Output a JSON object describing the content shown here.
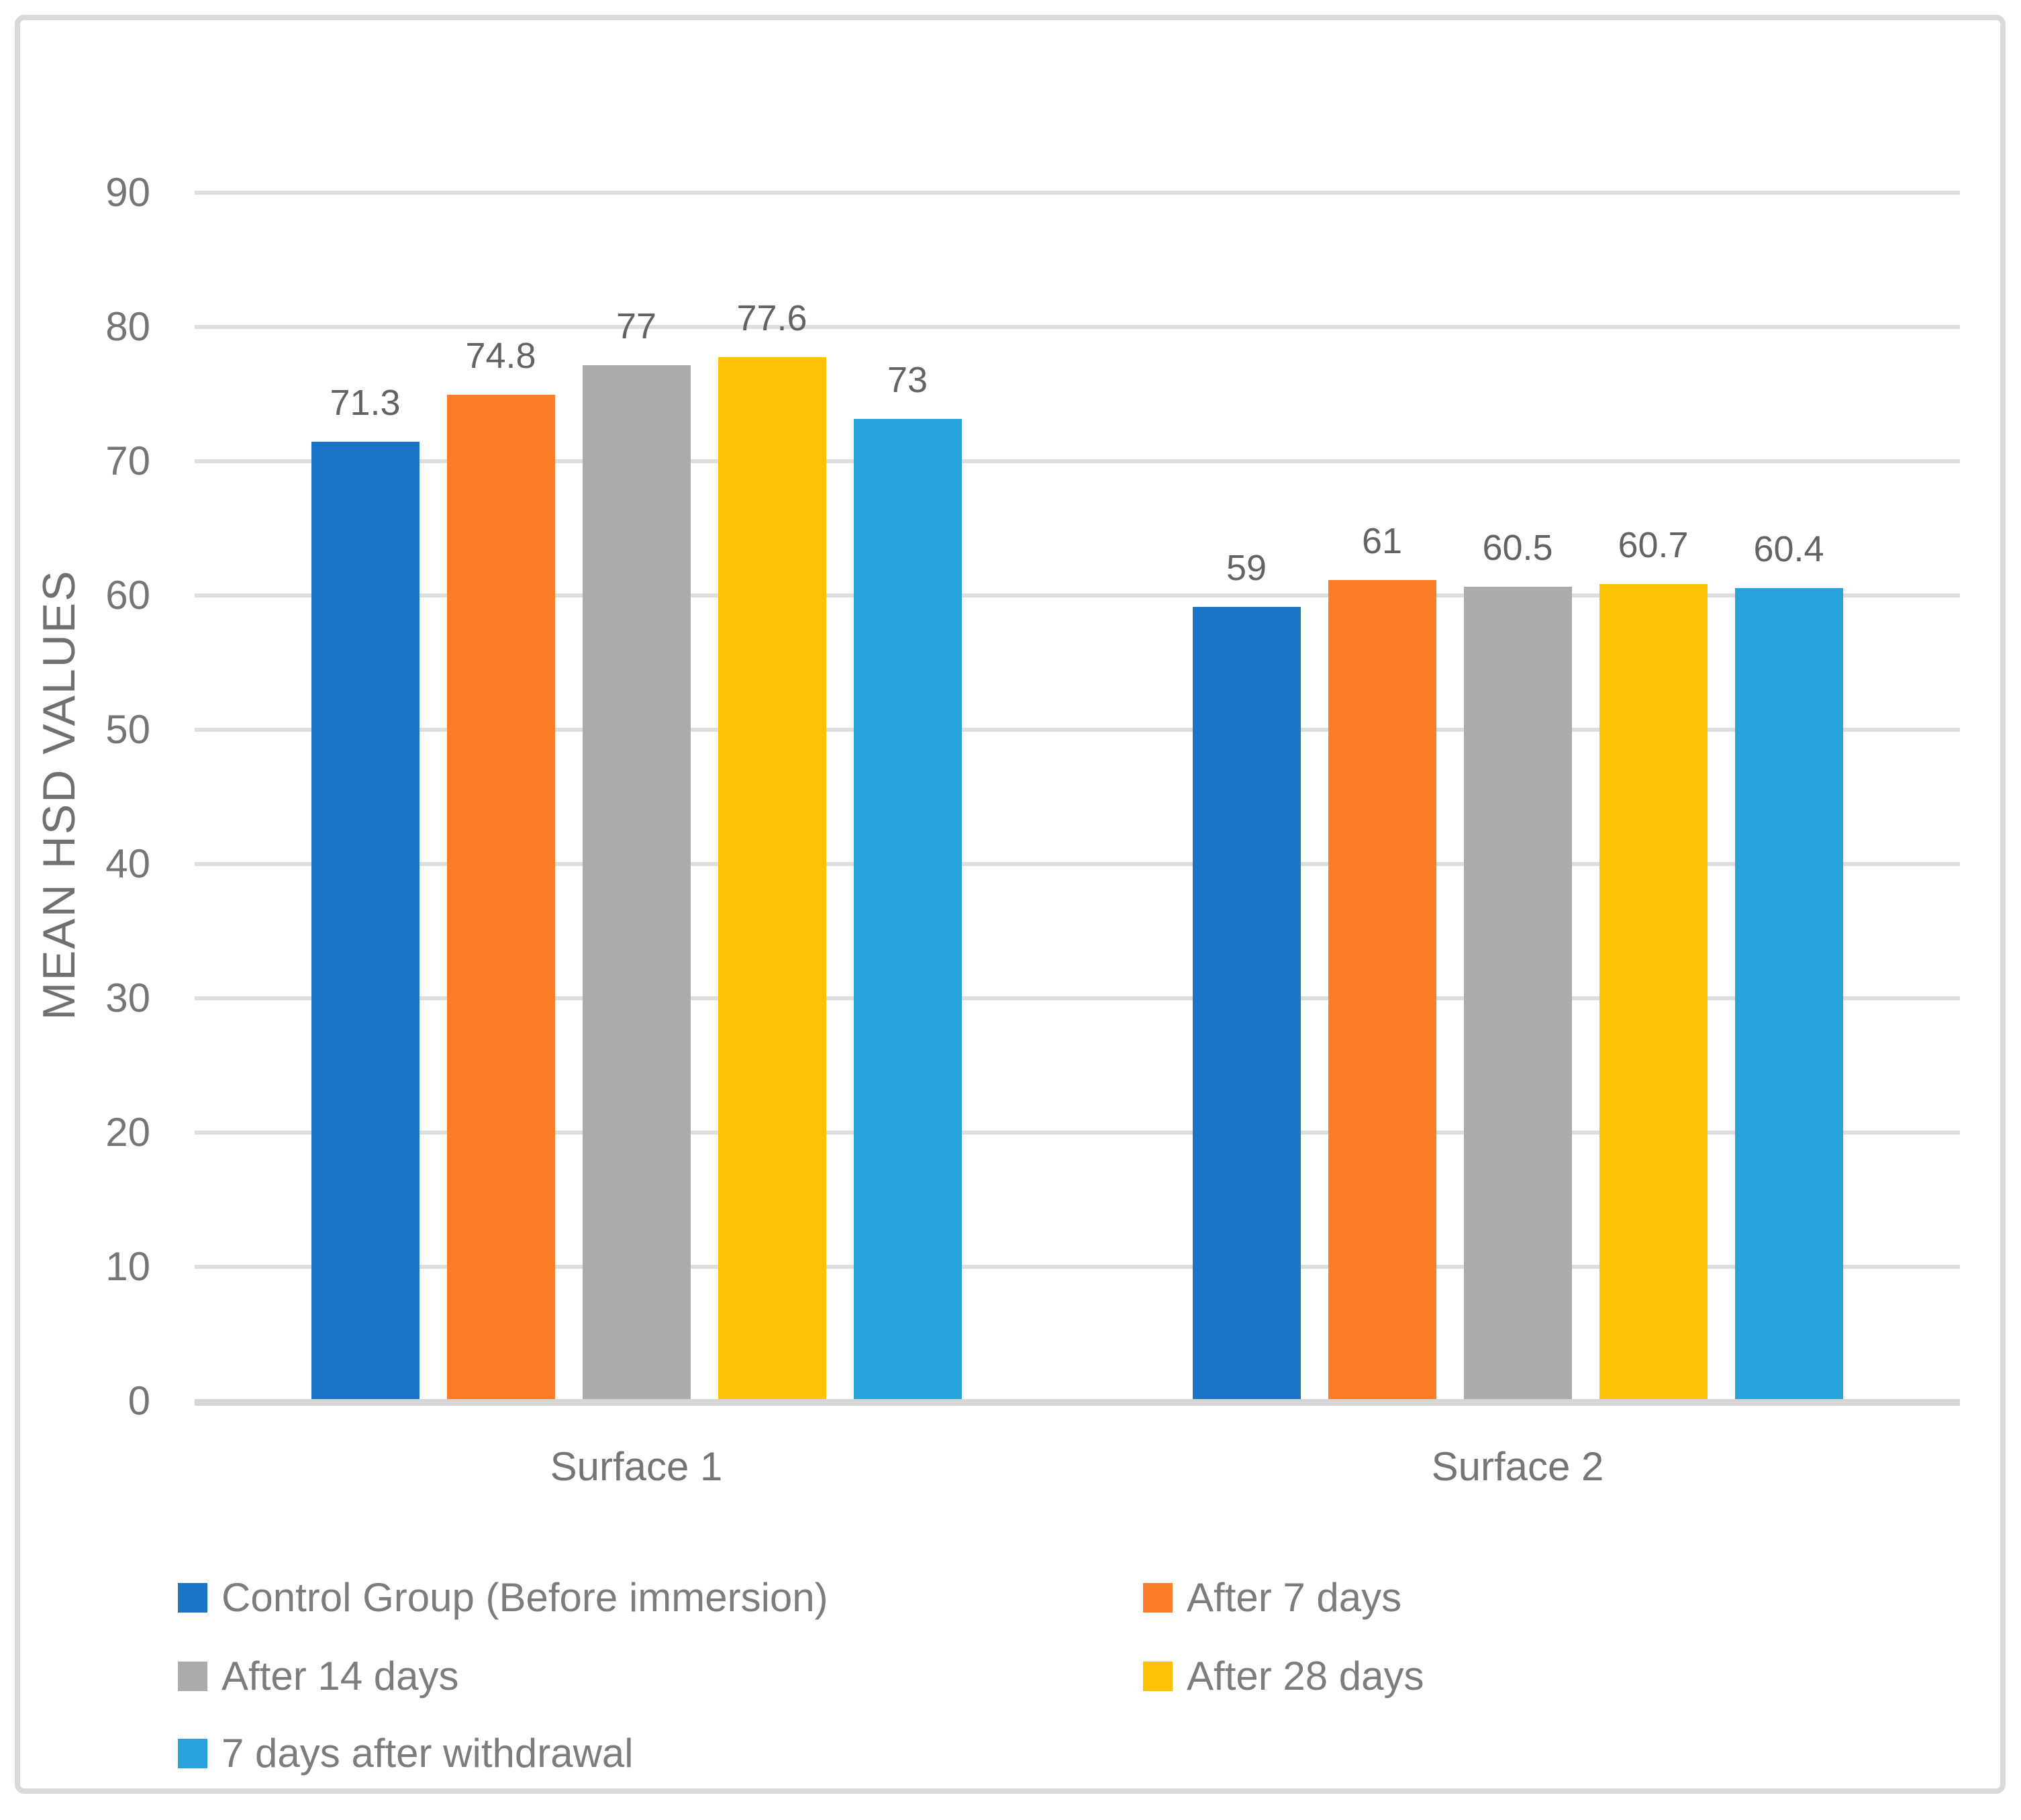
{
  "chart_data": {
    "type": "bar",
    "title": "",
    "xlabel": "",
    "ylabel": "MEAN HSD VALUES",
    "categories": [
      "Surface 1",
      "Surface 2"
    ],
    "series": [
      {
        "name": "Control Group (Before immersion)",
        "color": "#1B74C6",
        "values": [
          71.3,
          59
        ]
      },
      {
        "name": "After 7 days",
        "color": "#FB7D29",
        "values": [
          74.8,
          61
        ]
      },
      {
        "name": "After 14 days",
        "color": "#ABABAB",
        "values": [
          77,
          60.5
        ]
      },
      {
        "name": "After 28 days",
        "color": "#FFC103",
        "values": [
          77.6,
          60.7
        ]
      },
      {
        "name": "7 days after withdrawal",
        "color": "#27A2DB",
        "values": [
          73,
          60.4
        ]
      }
    ],
    "data_labels": [
      [
        "71.3",
        "74.8",
        "77",
        "77.6",
        "73"
      ],
      [
        "59",
        "61",
        "60.5",
        "60.7",
        "60.4"
      ]
    ],
    "yticks": [
      0,
      10,
      20,
      30,
      40,
      50,
      60,
      70,
      80,
      90
    ],
    "ylim": [
      0,
      90
    ],
    "grid": true,
    "legend_position": "bottom",
    "colors": {
      "gridline": "#DEDEDE",
      "axis_line": "#D5D5D5",
      "frame_border": "#D9D9D9",
      "tick_text": "#757575",
      "label_text": "#636363",
      "legend_text": "#7C7C7C"
    }
  }
}
